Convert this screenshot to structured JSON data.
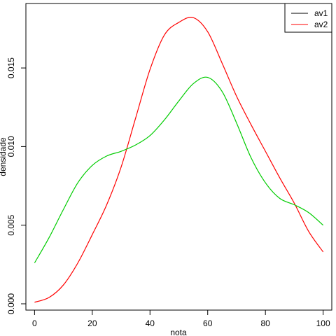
{
  "chart_data": {
    "type": "line",
    "xlabel": "nota",
    "ylabel": "densidade",
    "xlim": [
      -3,
      103
    ],
    "ylim": [
      -0.0004,
      0.0191
    ],
    "xticks": [
      0,
      20,
      40,
      60,
      80,
      100
    ],
    "xtick_labels": [
      "0",
      "20",
      "40",
      "60",
      "80",
      "100"
    ],
    "yticks": [
      0.0,
      0.005,
      0.01,
      0.015
    ],
    "ytick_labels": [
      "0.000",
      "0.005",
      "0.010",
      "0.015"
    ],
    "grid": false,
    "legend_position": "top-right",
    "legend": [
      {
        "label": "av1",
        "color": "#000000"
      },
      {
        "label": "av2",
        "color": "#ff0000"
      }
    ],
    "series": [
      {
        "color": "#ff0000",
        "x": [
          0,
          5,
          10,
          15,
          20,
          25,
          30,
          35,
          40,
          45,
          50,
          55,
          60,
          65,
          70,
          75,
          80,
          85,
          90,
          95,
          100
        ],
        "y": [
          0.0001,
          0.0004,
          0.0012,
          0.0026,
          0.0044,
          0.0063,
          0.0087,
          0.0118,
          0.0149,
          0.0171,
          0.0179,
          0.0182,
          0.0173,
          0.0153,
          0.0132,
          0.0114,
          0.0097,
          0.008,
          0.0064,
          0.0046,
          0.0033
        ]
      },
      {
        "color": "#00cc00",
        "x": [
          0,
          5,
          10,
          15,
          20,
          25,
          30,
          35,
          40,
          45,
          50,
          55,
          60,
          65,
          70,
          75,
          80,
          85,
          90,
          95,
          100
        ],
        "y": [
          0.0026,
          0.0042,
          0.006,
          0.0077,
          0.0088,
          0.0094,
          0.0097,
          0.0101,
          0.0107,
          0.0117,
          0.0129,
          0.014,
          0.0144,
          0.0135,
          0.0115,
          0.0093,
          0.0077,
          0.0067,
          0.0063,
          0.0058,
          0.005
        ]
      }
    ]
  }
}
